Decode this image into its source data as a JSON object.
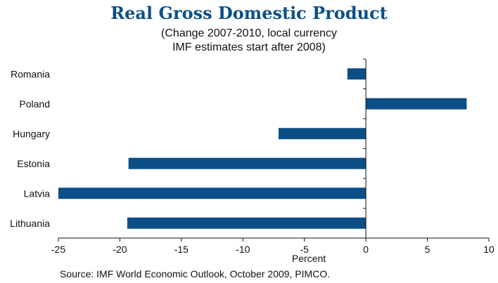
{
  "chart_data": {
    "type": "bar",
    "orientation": "horizontal",
    "title": "Real Gross Domestic Product",
    "subtitle_lines": [
      "(Change 2007-2010, local currency",
      "IMF estimates start after 2008)"
    ],
    "categories": [
      "Romania",
      "Poland",
      "Hungary",
      "Estonia",
      "Latvia",
      "Lithuania"
    ],
    "values": [
      -1.5,
      8.2,
      -7.1,
      -19.3,
      -25.0,
      -19.4
    ],
    "xlabel": "Percent",
    "ylabel": "",
    "xlim": [
      -25,
      10
    ],
    "xticks": [
      "-25",
      "-20",
      "-15",
      "-10",
      "-5",
      "0",
      "5",
      "10"
    ],
    "xtick_values": [
      -25,
      -20,
      -15,
      -10,
      -5,
      0,
      5,
      10
    ],
    "bar_color": "#0c4f86",
    "grid": false,
    "legend": "none",
    "source": "Source: IMF World Economic Outlook, October 2009, PIMCO."
  }
}
